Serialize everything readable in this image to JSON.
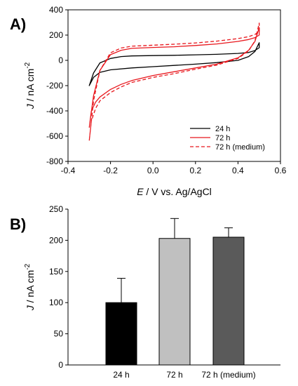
{
  "chart_data": [
    {
      "panel": "A)",
      "type": "line",
      "xlabel_italic": "E",
      "xlabel_rest": " / V vs. Ag/AgCl",
      "ylabel_italic": "J",
      "ylabel_rest": " / nA cm",
      "ylabel_sup": "-2",
      "xlim": [
        -0.4,
        0.6
      ],
      "ylim": [
        -800,
        400
      ],
      "xticks": [
        -0.4,
        -0.2,
        0.0,
        0.2,
        0.4,
        0.6
      ],
      "xtick_labels": [
        "-0.4",
        "-0.2",
        "0.0",
        "0.2",
        "0.4",
        "0.6"
      ],
      "yticks": [
        -800,
        -600,
        -400,
        -200,
        0,
        200,
        400
      ],
      "ytick_labels": [
        "-800",
        "-600",
        "-400",
        "-200",
        "0",
        "200",
        "400"
      ],
      "legend_position": "bottom-right",
      "series": [
        {
          "name": "24 h",
          "color": "#000000",
          "dashed": false,
          "points": [
            [
              -0.3,
              -200
            ],
            [
              -0.28,
              -135
            ],
            [
              -0.25,
              -95
            ],
            [
              -0.2,
              -75
            ],
            [
              -0.1,
              -60
            ],
            [
              0.0,
              -50
            ],
            [
              0.1,
              -40
            ],
            [
              0.2,
              -30
            ],
            [
              0.3,
              -18
            ],
            [
              0.4,
              0
            ],
            [
              0.45,
              30
            ],
            [
              0.48,
              70
            ],
            [
              0.5,
              140
            ],
            [
              0.5,
              100
            ],
            [
              0.48,
              78
            ],
            [
              0.45,
              62
            ],
            [
              0.4,
              55
            ],
            [
              0.3,
              48
            ],
            [
              0.2,
              44
            ],
            [
              0.1,
              40
            ],
            [
              0.0,
              38
            ],
            [
              -0.1,
              35
            ],
            [
              -0.15,
              30
            ],
            [
              -0.2,
              15
            ],
            [
              -0.25,
              -20
            ],
            [
              -0.28,
              -100
            ],
            [
              -0.3,
              -200
            ]
          ]
        },
        {
          "name": "72 h",
          "color": "#e8171d",
          "dashed": false,
          "points": [
            [
              -0.3,
              -530
            ],
            [
              -0.29,
              -400
            ],
            [
              -0.27,
              -330
            ],
            [
              -0.25,
              -290
            ],
            [
              -0.2,
              -230
            ],
            [
              -0.15,
              -190
            ],
            [
              -0.1,
              -160
            ],
            [
              0.0,
              -120
            ],
            [
              0.1,
              -90
            ],
            [
              0.2,
              -60
            ],
            [
              0.3,
              -30
            ],
            [
              0.4,
              20
            ],
            [
              0.45,
              80
            ],
            [
              0.48,
              150
            ],
            [
              0.5,
              260
            ],
            [
              0.5,
              200
            ],
            [
              0.48,
              180
            ],
            [
              0.45,
              165
            ],
            [
              0.4,
              150
            ],
            [
              0.3,
              130
            ],
            [
              0.2,
              118
            ],
            [
              0.1,
              108
            ],
            [
              0.0,
              102
            ],
            [
              -0.1,
              95
            ],
            [
              -0.15,
              80
            ],
            [
              -0.2,
              45
            ],
            [
              -0.25,
              -80
            ],
            [
              -0.28,
              -280
            ],
            [
              -0.3,
              -530
            ]
          ]
        },
        {
          "name": "72 h (medium)",
          "color": "#e8171d",
          "dashed": true,
          "points": [
            [
              -0.3,
              -635
            ],
            [
              -0.29,
              -480
            ],
            [
              -0.27,
              -380
            ],
            [
              -0.25,
              -320
            ],
            [
              -0.2,
              -255
            ],
            [
              -0.15,
              -210
            ],
            [
              -0.1,
              -175
            ],
            [
              0.0,
              -135
            ],
            [
              0.1,
              -105
            ],
            [
              0.2,
              -70
            ],
            [
              0.3,
              -38
            ],
            [
              0.4,
              15
            ],
            [
              0.45,
              75
            ],
            [
              0.48,
              155
            ],
            [
              0.5,
              295
            ],
            [
              0.5,
              230
            ],
            [
              0.48,
              205
            ],
            [
              0.45,
              188
            ],
            [
              0.4,
              172
            ],
            [
              0.3,
              152
            ],
            [
              0.2,
              138
            ],
            [
              0.1,
              128
            ],
            [
              0.0,
              120
            ],
            [
              -0.1,
              112
            ],
            [
              -0.15,
              98
            ],
            [
              -0.2,
              60
            ],
            [
              -0.25,
              -80
            ],
            [
              -0.28,
              -320
            ],
            [
              -0.3,
              -635
            ]
          ]
        }
      ]
    },
    {
      "panel": "B)",
      "type": "bar",
      "categories": [
        "24 h",
        "72 h",
        "72 h (medium)"
      ],
      "values": [
        100,
        203,
        205
      ],
      "errors": [
        39,
        32,
        15
      ],
      "colors": [
        "#000000",
        "#c0c0c0",
        "#5a5a5a"
      ],
      "ylabel_italic": "J",
      "ylabel_rest": " / nA cm",
      "ylabel_sup": "-2",
      "ylim": [
        0,
        250
      ],
      "yticks": [
        0,
        50,
        100,
        150,
        200,
        250
      ],
      "ytick_labels": [
        "0",
        "50",
        "100",
        "150",
        "200",
        "250"
      ]
    }
  ]
}
